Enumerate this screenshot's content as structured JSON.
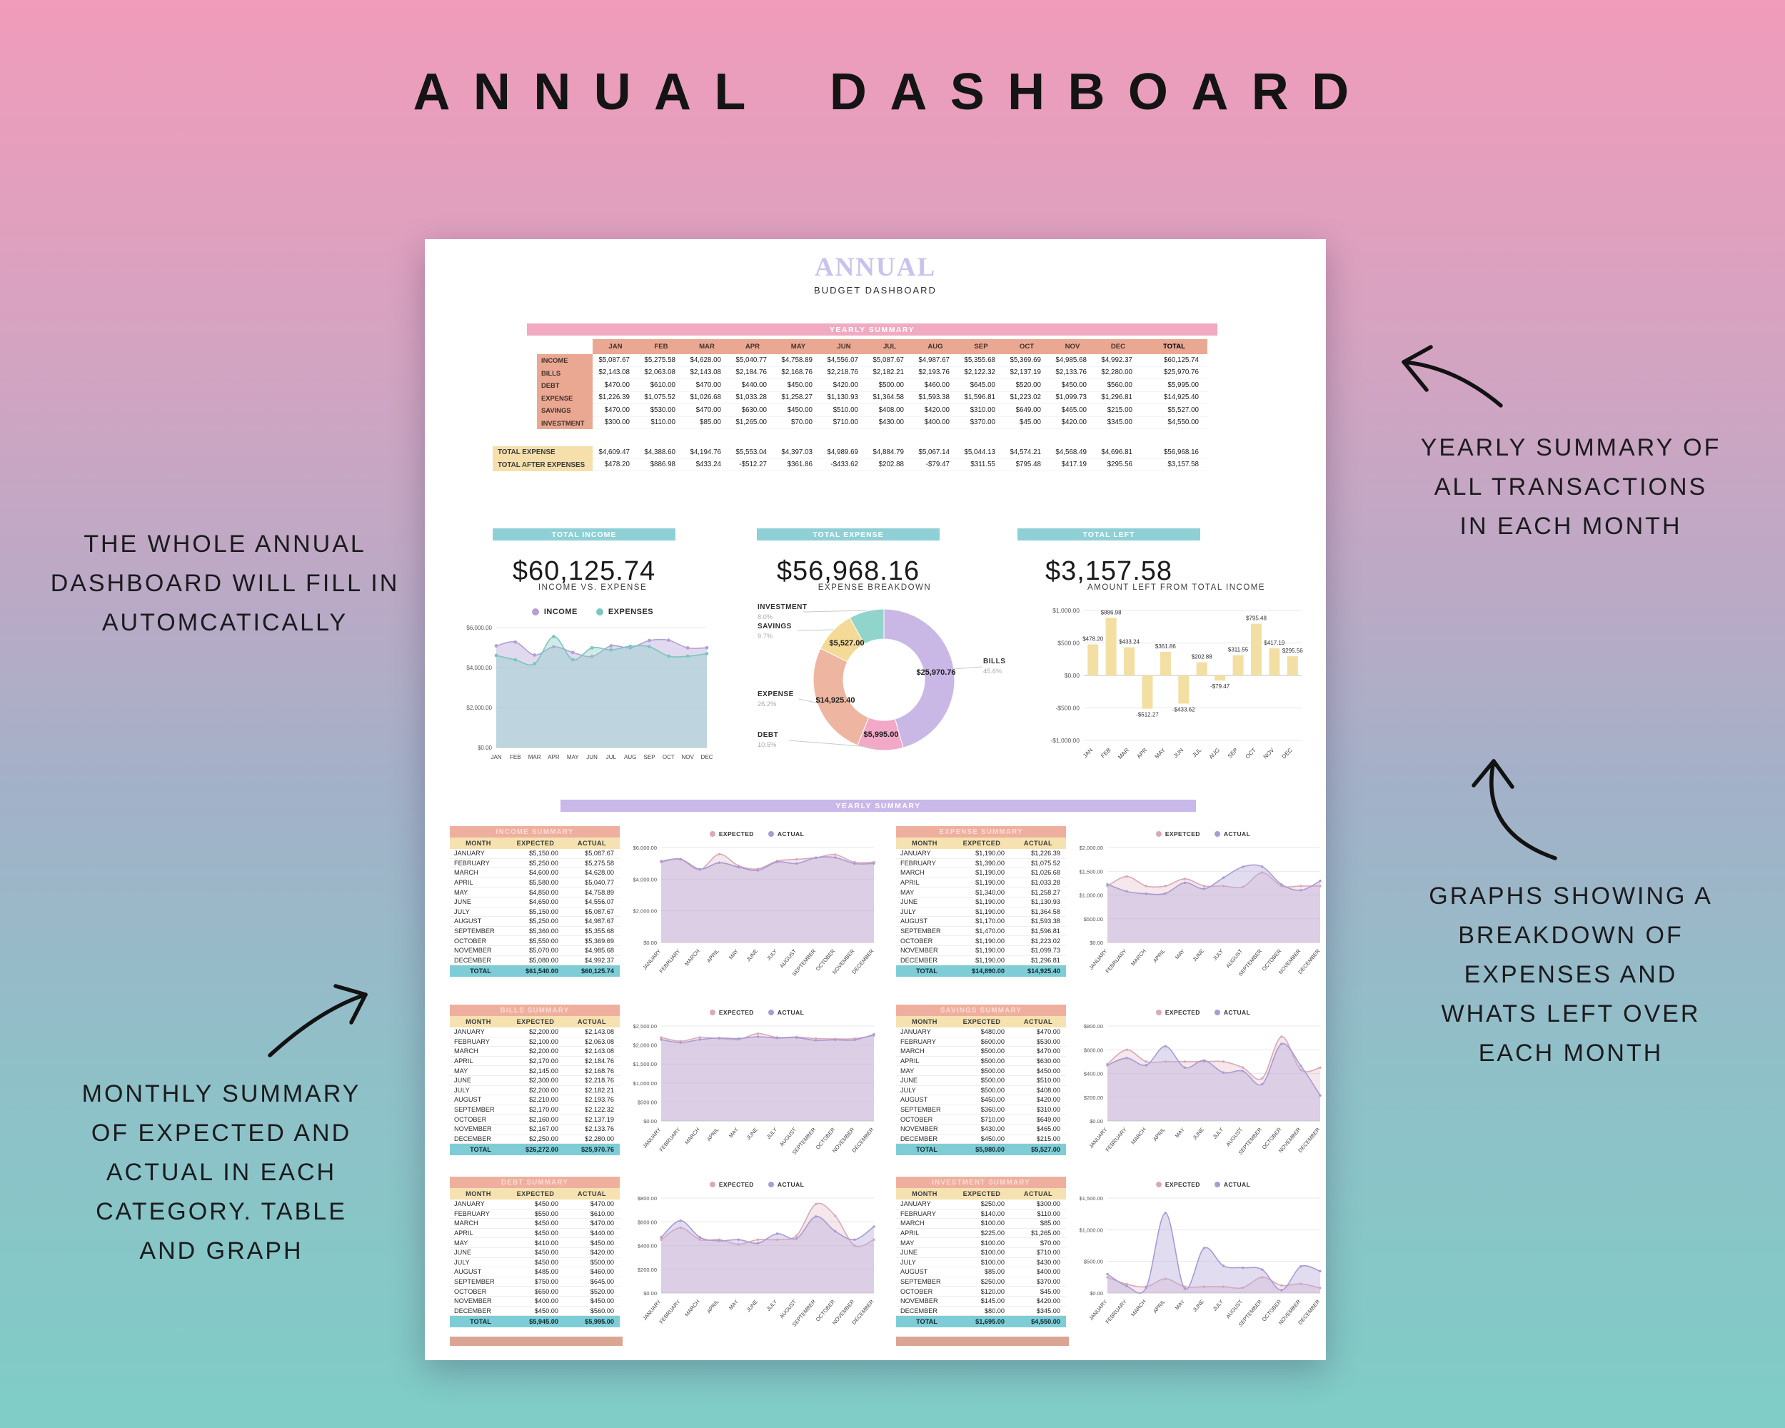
{
  "title": "ANNUAL DASHBOARD",
  "annotations": {
    "left_top": "THE WHOLE ANNUAL DASHBOARD WILL FILL IN AUTOMCATICALLY",
    "right_top": "YEARLY SUMMARY OF ALL TRANSACTIONS IN EACH MONTH",
    "right_bottom": "GRAPHS SHOWING A BREAKDOWN OF EXPENSES AND WHATS LEFT OVER EACH MONTH",
    "left_bottom": "MONTHLY SUMMARY OF EXPECTED AND ACTUAL IN EACH CATEGORY. TABLE AND GRAPH"
  },
  "colors": {
    "salmon_header": "#eaa893",
    "cream_label": "#f5e0ac",
    "pink_banner": "#f1aac1",
    "teal_banner": "#8ed0d6",
    "purple_banner": "#c9b8ea",
    "summary_title_bg": "#efaf9f",
    "summary_title_fg": "#fbdcd3",
    "column_header_bg": "#f6e2b0",
    "total_row_bg": "#7ecdd6",
    "strip": "#d89d8b",
    "income_line": "#b3a0d6",
    "income_fill": "rgba(186,170,220,0.45)",
    "expense_line": "#7cc6c0",
    "expense_fill": "rgba(140,205,198,0.40)",
    "expected_line": "#d9aab6",
    "expected_fill": "rgba(225,185,198,0.35)",
    "actual_line": "#a99bd4",
    "actual_fill": "rgba(185,172,219,0.42)",
    "bar": "#f3dfa2"
  },
  "months_short": [
    "JAN",
    "FEB",
    "MAR",
    "APR",
    "MAY",
    "JUN",
    "JUL",
    "AUG",
    "SEP",
    "OCT",
    "NOV",
    "DEC"
  ],
  "months_full": [
    "JANUARY",
    "FEBRUARY",
    "MARCH",
    "APRIL",
    "MAY",
    "JUNE",
    "JULY",
    "AUGUST",
    "SEPTEMBER",
    "OCTOBER",
    "NOVEMBER",
    "DECEMBER"
  ],
  "sheet": {
    "title": "ANNUAL",
    "subtitle": "BUDGET DASHBOARD",
    "banner_top": "YEARLY SUMMARY",
    "banner_mid": "YEARLY SUMMARY",
    "total_col": "TOTAL",
    "yearly": {
      "row_labels": [
        "INCOME",
        "BILLS",
        "DEBT",
        "EXPENSE",
        "SAVINGS",
        "INVESTMENT"
      ],
      "rows": [
        [
          "$5,087.67",
          "$5,275.58",
          "$4,628.00",
          "$5,040.77",
          "$4,758.89",
          "$4,556.07",
          "$5,087.67",
          "$4,987.67",
          "$5,355.68",
          "$5,369.69",
          "$4,985.68",
          "$4,992.37",
          "$60,125.74"
        ],
        [
          "$2,143.08",
          "$2,063.08",
          "$2,143.08",
          "$2,184.76",
          "$2,168.76",
          "$2,218.76",
          "$2,182.21",
          "$2,193.76",
          "$2,122.32",
          "$2,137.19",
          "$2,133.76",
          "$2,280.00",
          "$25,970.76"
        ],
        [
          "$470.00",
          "$610.00",
          "$470.00",
          "$440.00",
          "$450.00",
          "$420.00",
          "$500.00",
          "$460.00",
          "$645.00",
          "$520.00",
          "$450.00",
          "$560.00",
          "$5,995.00"
        ],
        [
          "$1,226.39",
          "$1,075.52",
          "$1,026.68",
          "$1,033.28",
          "$1,258.27",
          "$1,130.93",
          "$1,364.58",
          "$1,593.38",
          "$1,596.81",
          "$1,223.02",
          "$1,099.73",
          "$1,296.81",
          "$14,925.40"
        ],
        [
          "$470.00",
          "$530.00",
          "$470.00",
          "$630.00",
          "$450.00",
          "$510.00",
          "$408.00",
          "$420.00",
          "$310.00",
          "$649.00",
          "$465.00",
          "$215.00",
          "$5,527.00"
        ],
        [
          "$300.00",
          "$110.00",
          "$85.00",
          "$1,265.00",
          "$70.00",
          "$710.00",
          "$430.00",
          "$400.00",
          "$370.00",
          "$45.00",
          "$420.00",
          "$345.00",
          "$4,550.00"
        ]
      ],
      "footer_labels": [
        "TOTAL EXPENSE",
        "TOTAL AFTER EXPENSES"
      ],
      "footer_rows": [
        [
          "$4,609.47",
          "$4,388.60",
          "$4,194.76",
          "$5,553.04",
          "$4,397.03",
          "$4,989.69",
          "$4,884.79",
          "$5,067.14",
          "$5,044.13",
          "$4,574.21",
          "$4,568.49",
          "$4,696.81",
          "$56,968.16"
        ],
        [
          "$478.20",
          "$886.98",
          "$433.24",
          "-$512.27",
          "$361.86",
          "-$433.62",
          "$202.88",
          "-$79.47",
          "$311.55",
          "$795.48",
          "$417.19",
          "$295.56",
          "$3,157.58"
        ]
      ]
    },
    "kpis": [
      {
        "label": "TOTAL INCOME",
        "value": "$60,125.74"
      },
      {
        "label": "TOTAL EXPENSE",
        "value": "$56,968.16"
      },
      {
        "label": "TOTAL LEFT",
        "value": "$3,157.58"
      }
    ]
  },
  "chart_data": [
    {
      "id": "income_vs_expense",
      "type": "area",
      "title": "INCOME VS. EXPENSE",
      "legend": [
        "INCOME",
        "EXPENSES"
      ],
      "categories": [
        "JAN",
        "FEB",
        "MAR",
        "APR",
        "MAY",
        "JUN",
        "JUL",
        "AUG",
        "SEP",
        "OCT",
        "NOV",
        "DEC"
      ],
      "series": [
        {
          "name": "INCOME",
          "values": [
            5087.67,
            5275.58,
            4628.0,
            5040.77,
            4758.89,
            4556.07,
            5087.67,
            4987.67,
            5355.68,
            5369.69,
            4985.68,
            4992.37
          ]
        },
        {
          "name": "EXPENSES",
          "values": [
            4609.47,
            4388.6,
            4194.76,
            5553.04,
            4397.03,
            4989.69,
            4884.79,
            5067.14,
            5044.13,
            4574.21,
            4568.49,
            4696.81
          ]
        }
      ],
      "ylim": [
        0,
        6000
      ],
      "yticks": [
        6000,
        4000,
        2000,
        0
      ],
      "legend_position": "top",
      "grid": true
    },
    {
      "id": "expense_breakdown",
      "type": "pie",
      "title": "EXPENSE BREAKDOWN",
      "slices": [
        {
          "label": "BILLS",
          "pct": 45.6,
          "pct_label": "45.6%",
          "value": "$25,970.76",
          "color": "#c9b8e6"
        },
        {
          "label": "DEBT",
          "pct": 10.5,
          "pct_label": "10.5%",
          "value": "$5,995.00",
          "color": "#f2a9c8"
        },
        {
          "label": "EXPENSE",
          "pct": 26.2,
          "pct_label": "26.2%",
          "value": "$14,925.40",
          "color": "#eeb6a1"
        },
        {
          "label": "SAVINGS",
          "pct": 9.7,
          "pct_label": "9.7%",
          "value": "$5,527.00",
          "color": "#f4da96"
        },
        {
          "label": "INVESTMENT",
          "pct": 8.0,
          "pct_label": "8.0%",
          "value": "",
          "color": "#90d4cc"
        }
      ]
    },
    {
      "id": "amount_left",
      "type": "bar",
      "title": "AMOUNT LEFT FROM TOTAL INCOME",
      "categories": [
        "JAN",
        "FEB",
        "MAR",
        "APR",
        "MAY",
        "JUN",
        "JUL",
        "AUG",
        "SEP",
        "OCT",
        "NOV",
        "DEC"
      ],
      "values": [
        478.2,
        886.98,
        433.24,
        -512.27,
        361.86,
        -433.62,
        202.88,
        -79.47,
        311.55,
        795.48,
        417.19,
        295.56
      ],
      "labels": [
        "$478.20",
        "$886.98",
        "$433.24",
        "-$512.27",
        "$361.86",
        "-$433.62",
        "$202.88",
        "-$79.47",
        "$311.55",
        "$795.48",
        "$417.19",
        "$295.56"
      ],
      "ylim": [
        -1000,
        1000
      ],
      "yticks": [
        1000,
        500,
        0,
        -500,
        -1000
      ],
      "grid": true
    }
  ],
  "summaries": [
    {
      "title": "INCOME SUMMARY",
      "cols": [
        "MONTH",
        "EXPECTED",
        "ACTUAL"
      ],
      "legend": [
        "EXPECTED",
        "ACTUAL"
      ],
      "expected": [
        "$5,150.00",
        "$5,250.00",
        "$4,600.00",
        "$5,580.00",
        "$4,850.00",
        "$4,650.00",
        "$5,150.00",
        "$5,250.00",
        "$5,360.00",
        "$5,550.00",
        "$5,070.00",
        "$5,080.00"
      ],
      "actual": [
        "$5,087.67",
        "$5,275.58",
        "$4,628.00",
        "$5,040.77",
        "$4,758.89",
        "$4,556.07",
        "$5,087.67",
        "$4,987.67",
        "$5,355.68",
        "$5,369.69",
        "$4,985.68",
        "$4,992.37"
      ],
      "total_label": "TOTAL",
      "total_expected": "$61,540.00",
      "total_actual": "$60,125.74",
      "yticks": [
        6000,
        4000,
        2000,
        0
      ]
    },
    {
      "title": "EXPENSE SUMMARY",
      "cols": [
        "MONTH",
        "EXPETCED",
        "ACTUAL"
      ],
      "legend": [
        "EXPETCED",
        "ACTUAL"
      ],
      "expected": [
        "$1,190.00",
        "$1,390.00",
        "$1,190.00",
        "$1,190.00",
        "$1,340.00",
        "$1,190.00",
        "$1,190.00",
        "$1,170.00",
        "$1,470.00",
        "$1,190.00",
        "$1,190.00",
        "$1,190.00"
      ],
      "actual": [
        "$1,226.39",
        "$1,075.52",
        "$1,026.68",
        "$1,033.28",
        "$1,258.27",
        "$1,130.93",
        "$1,364.58",
        "$1,593.38",
        "$1,596.81",
        "$1,223.02",
        "$1,099.73",
        "$1,296.81"
      ],
      "total_label": "TOTAL",
      "total_expected": "$14,890.00",
      "total_actual": "$14,925.40",
      "yticks": [
        2000,
        1500,
        1000,
        500,
        0
      ]
    },
    {
      "title": "BILLS SUMMARY",
      "cols": [
        "MONTH",
        "EXPECTED",
        "ACTUAL"
      ],
      "legend": [
        "EXPECTED",
        "ACTUAL"
      ],
      "expected": [
        "$2,200.00",
        "$2,100.00",
        "$2,200.00",
        "$2,170.00",
        "$2,145.00",
        "$2,300.00",
        "$2,200.00",
        "$2,210.00",
        "$2,170.00",
        "$2,160.00",
        "$2,167.00",
        "$2,250.00"
      ],
      "actual": [
        "$2,143.08",
        "$2,063.08",
        "$2,143.08",
        "$2,184.76",
        "$2,168.76",
        "$2,218.76",
        "$2,182.21",
        "$2,193.76",
        "$2,122.32",
        "$2,137.19",
        "$2,133.76",
        "$2,280.00"
      ],
      "total_label": "TOTAL",
      "total_expected": "$26,272.00",
      "total_actual": "$25,970.76",
      "yticks": [
        2500,
        2000,
        1500,
        1000,
        500,
        0
      ]
    },
    {
      "title": "SAVINGS SUMMARY",
      "cols": [
        "MONTH",
        "EXPECTED",
        "ACTUAL"
      ],
      "legend": [
        "EXPECTED",
        "ACTUAL"
      ],
      "expected": [
        "$480.00",
        "$600.00",
        "$500.00",
        "$500.00",
        "$500.00",
        "$500.00",
        "$500.00",
        "$450.00",
        "$360.00",
        "$710.00",
        "$430.00",
        "$450.00"
      ],
      "actual": [
        "$470.00",
        "$530.00",
        "$470.00",
        "$630.00",
        "$450.00",
        "$510.00",
        "$408.00",
        "$420.00",
        "$310.00",
        "$649.00",
        "$465.00",
        "$215.00"
      ],
      "total_label": "TOTAL",
      "total_expected": "$5,980.00",
      "total_actual": "$5,527.00",
      "yticks": [
        800,
        600,
        400,
        200,
        0
      ]
    },
    {
      "title": "DEBT SUMMARY",
      "cols": [
        "MONTH",
        "EXPECTED",
        "ACTUAL"
      ],
      "legend": [
        "EXPECTED",
        "ACTUAL"
      ],
      "expected": [
        "$450.00",
        "$550.00",
        "$450.00",
        "$450.00",
        "$410.00",
        "$450.00",
        "$450.00",
        "$485.00",
        "$750.00",
        "$650.00",
        "$400.00",
        "$450.00"
      ],
      "actual": [
        "$470.00",
        "$610.00",
        "$470.00",
        "$440.00",
        "$450.00",
        "$420.00",
        "$500.00",
        "$460.00",
        "$645.00",
        "$520.00",
        "$450.00",
        "$560.00"
      ],
      "total_label": "TOTAL",
      "total_expected": "$5,945.00",
      "total_actual": "$5,995.00",
      "yticks": [
        800,
        600,
        400,
        200,
        0
      ]
    },
    {
      "title": "INVESTMENT SUMMARY",
      "cols": [
        "MONTH",
        "EXPECTED",
        "ACTUAL"
      ],
      "legend": [
        "EXPECTED",
        "ACTUAL"
      ],
      "expected": [
        "$250.00",
        "$140.00",
        "$100.00",
        "$225.00",
        "$100.00",
        "$100.00",
        "$100.00",
        "$85.00",
        "$250.00",
        "$120.00",
        "$145.00",
        "$80.00"
      ],
      "actual": [
        "$300.00",
        "$110.00",
        "$85.00",
        "$1,265.00",
        "$70.00",
        "$710.00",
        "$430.00",
        "$400.00",
        "$370.00",
        "$45.00",
        "$420.00",
        "$345.00"
      ],
      "total_label": "TOTAL",
      "total_expected": "$1,695.00",
      "total_actual": "$4,550.00",
      "yticks": [
        1500,
        1000,
        500,
        0
      ]
    }
  ]
}
